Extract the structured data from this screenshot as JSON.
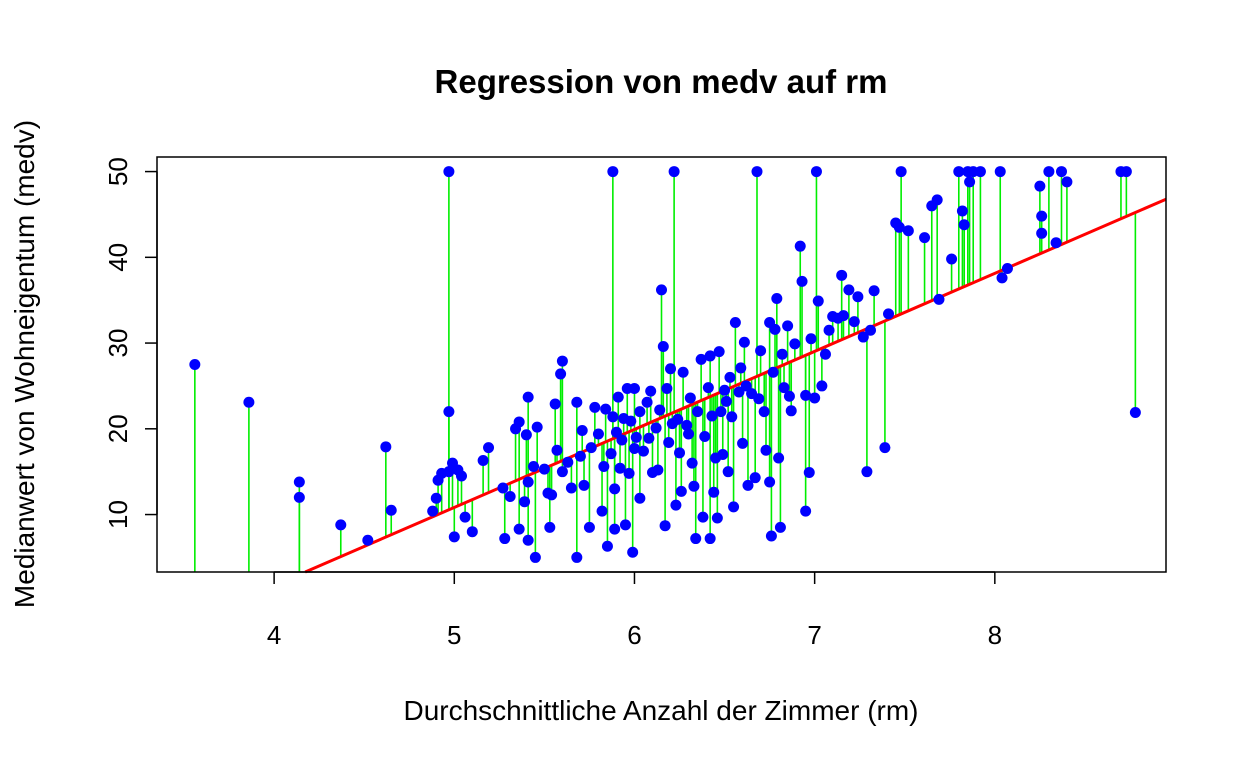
{
  "chart_data": {
    "type": "scatter",
    "title": "Regression von medv auf rm",
    "xlabel": "Durchschnittliche Anzahl der Zimmer (rm)",
    "ylabel": "Medianwert von Wohneigentum (medv)",
    "xlim": [
      3.35,
      8.95
    ],
    "ylim": [
      3.3,
      51.7
    ],
    "x_ticks": [
      4,
      5,
      6,
      7,
      8
    ],
    "y_ticks": [
      10,
      20,
      30,
      40,
      50
    ],
    "grid": false,
    "legend": "none",
    "regression_line": {
      "intercept": -34.67,
      "slope": 9.1,
      "color": "#ff0000"
    },
    "point_color": "#0000ff",
    "residual_color": "#00ee00",
    "points": [
      [
        3.56,
        27.5
      ],
      [
        3.86,
        23.1
      ],
      [
        4.14,
        13.8
      ],
      [
        4.14,
        12.0
      ],
      [
        4.37,
        8.8
      ],
      [
        4.52,
        7.0
      ],
      [
        4.62,
        17.9
      ],
      [
        4.65,
        10.5
      ],
      [
        4.88,
        10.4
      ],
      [
        4.9,
        11.9
      ],
      [
        4.91,
        14.0
      ],
      [
        4.93,
        14.8
      ],
      [
        4.97,
        50.0
      ],
      [
        4.97,
        22.0
      ],
      [
        4.97,
        15.0
      ],
      [
        4.99,
        16.0
      ],
      [
        5.0,
        7.4
      ],
      [
        5.02,
        15.2
      ],
      [
        5.04,
        14.5
      ],
      [
        5.06,
        9.7
      ],
      [
        5.1,
        8.0
      ],
      [
        5.16,
        16.3
      ],
      [
        5.19,
        17.8
      ],
      [
        5.27,
        13.1
      ],
      [
        5.28,
        7.2
      ],
      [
        5.31,
        12.1
      ],
      [
        5.34,
        20.0
      ],
      [
        5.36,
        8.3
      ],
      [
        5.36,
        20.8
      ],
      [
        5.39,
        11.5
      ],
      [
        5.4,
        19.3
      ],
      [
        5.41,
        13.8
      ],
      [
        5.41,
        23.7
      ],
      [
        5.41,
        7.0
      ],
      [
        5.44,
        15.6
      ],
      [
        5.45,
        5.0
      ],
      [
        5.46,
        20.2
      ],
      [
        5.5,
        15.3
      ],
      [
        5.52,
        12.5
      ],
      [
        5.53,
        8.5
      ],
      [
        5.54,
        12.3
      ],
      [
        5.56,
        22.9
      ],
      [
        5.57,
        17.5
      ],
      [
        5.59,
        26.4
      ],
      [
        5.6,
        27.9
      ],
      [
        5.6,
        15.0
      ],
      [
        5.63,
        16.1
      ],
      [
        5.65,
        13.1
      ],
      [
        5.68,
        23.1
      ],
      [
        5.68,
        5.0
      ],
      [
        5.7,
        16.8
      ],
      [
        5.71,
        19.8
      ],
      [
        5.72,
        13.4
      ],
      [
        5.75,
        8.5
      ],
      [
        5.76,
        17.8
      ],
      [
        5.78,
        22.5
      ],
      [
        5.8,
        19.4
      ],
      [
        5.82,
        10.4
      ],
      [
        5.83,
        15.6
      ],
      [
        5.84,
        22.3
      ],
      [
        5.85,
        6.3
      ],
      [
        5.87,
        17.1
      ],
      [
        5.88,
        50.0
      ],
      [
        5.88,
        21.4
      ],
      [
        5.89,
        13.0
      ],
      [
        5.89,
        8.3
      ],
      [
        5.9,
        19.6
      ],
      [
        5.91,
        23.7
      ],
      [
        5.92,
        15.4
      ],
      [
        5.93,
        18.7
      ],
      [
        5.94,
        21.2
      ],
      [
        5.95,
        8.8
      ],
      [
        5.96,
        24.7
      ],
      [
        5.97,
        14.8
      ],
      [
        5.98,
        20.9
      ],
      [
        5.99,
        5.6
      ],
      [
        6.0,
        17.7
      ],
      [
        6.0,
        24.7
      ],
      [
        6.01,
        19.0
      ],
      [
        6.03,
        11.9
      ],
      [
        6.03,
        22.0
      ],
      [
        6.05,
        17.4
      ],
      [
        6.07,
        23.1
      ],
      [
        6.08,
        18.9
      ],
      [
        6.09,
        24.4
      ],
      [
        6.1,
        14.9
      ],
      [
        6.12,
        20.1
      ],
      [
        6.13,
        15.2
      ],
      [
        6.14,
        22.2
      ],
      [
        6.15,
        36.2
      ],
      [
        6.16,
        29.6
      ],
      [
        6.17,
        8.7
      ],
      [
        6.18,
        24.7
      ],
      [
        6.19,
        18.4
      ],
      [
        6.2,
        27.0
      ],
      [
        6.21,
        20.6
      ],
      [
        6.22,
        50.0
      ],
      [
        6.23,
        11.1
      ],
      [
        6.24,
        21.1
      ],
      [
        6.25,
        17.2
      ],
      [
        6.26,
        12.7
      ],
      [
        6.27,
        26.6
      ],
      [
        6.29,
        20.4
      ],
      [
        6.3,
        19.4
      ],
      [
        6.31,
        23.6
      ],
      [
        6.32,
        16.0
      ],
      [
        6.33,
        13.3
      ],
      [
        6.34,
        7.2
      ],
      [
        6.35,
        22.0
      ],
      [
        6.37,
        28.1
      ],
      [
        6.38,
        9.7
      ],
      [
        6.39,
        19.1
      ],
      [
        6.41,
        24.8
      ],
      [
        6.42,
        28.5
      ],
      [
        6.42,
        7.2
      ],
      [
        6.43,
        21.5
      ],
      [
        6.44,
        12.6
      ],
      [
        6.45,
        16.6
      ],
      [
        6.46,
        9.6
      ],
      [
        6.47,
        29.0
      ],
      [
        6.48,
        22.0
      ],
      [
        6.49,
        17.0
      ],
      [
        6.5,
        24.5
      ],
      [
        6.51,
        23.2
      ],
      [
        6.52,
        15.0
      ],
      [
        6.53,
        26.0
      ],
      [
        6.54,
        21.4
      ],
      [
        6.55,
        10.9
      ],
      [
        6.56,
        32.4
      ],
      [
        6.58,
        24.3
      ],
      [
        6.59,
        27.1
      ],
      [
        6.6,
        18.3
      ],
      [
        6.61,
        30.1
      ],
      [
        6.62,
        25.0
      ],
      [
        6.63,
        13.4
      ],
      [
        6.65,
        24.1
      ],
      [
        6.67,
        14.3
      ],
      [
        6.68,
        50.0
      ],
      [
        6.69,
        23.5
      ],
      [
        6.7,
        29.1
      ],
      [
        6.72,
        22.0
      ],
      [
        6.73,
        17.5
      ],
      [
        6.75,
        32.4
      ],
      [
        6.75,
        13.8
      ],
      [
        6.76,
        7.5
      ],
      [
        6.77,
        26.6
      ],
      [
        6.78,
        31.6
      ],
      [
        6.79,
        35.2
      ],
      [
        6.8,
        16.6
      ],
      [
        6.81,
        8.5
      ],
      [
        6.82,
        28.7
      ],
      [
        6.83,
        24.8
      ],
      [
        6.85,
        32.0
      ],
      [
        6.86,
        23.8
      ],
      [
        6.87,
        22.1
      ],
      [
        6.89,
        29.9
      ],
      [
        6.92,
        41.3
      ],
      [
        6.93,
        37.2
      ],
      [
        6.95,
        23.9
      ],
      [
        6.95,
        10.4
      ],
      [
        6.97,
        14.9
      ],
      [
        6.98,
        30.5
      ],
      [
        7.0,
        23.6
      ],
      [
        7.01,
        50.0
      ],
      [
        7.02,
        34.9
      ],
      [
        7.04,
        25.0
      ],
      [
        7.06,
        28.7
      ],
      [
        7.08,
        31.5
      ],
      [
        7.1,
        33.1
      ],
      [
        7.13,
        32.9
      ],
      [
        7.15,
        37.9
      ],
      [
        7.16,
        33.2
      ],
      [
        7.19,
        36.2
      ],
      [
        7.22,
        32.5
      ],
      [
        7.24,
        35.4
      ],
      [
        7.27,
        30.7
      ],
      [
        7.29,
        15.0
      ],
      [
        7.31,
        31.5
      ],
      [
        7.33,
        36.1
      ],
      [
        7.39,
        17.8
      ],
      [
        7.41,
        33.4
      ],
      [
        7.45,
        44.0
      ],
      [
        7.47,
        43.5
      ],
      [
        7.48,
        50.0
      ],
      [
        7.52,
        43.1
      ],
      [
        7.61,
        42.3
      ],
      [
        7.65,
        46.0
      ],
      [
        7.68,
        46.7
      ],
      [
        7.69,
        35.1
      ],
      [
        7.76,
        39.8
      ],
      [
        7.8,
        50.0
      ],
      [
        7.82,
        45.4
      ],
      [
        7.83,
        43.8
      ],
      [
        7.85,
        50.0
      ],
      [
        7.86,
        48.8
      ],
      [
        7.88,
        50.0
      ],
      [
        7.92,
        50.0
      ],
      [
        8.03,
        50.0
      ],
      [
        8.04,
        37.6
      ],
      [
        8.07,
        38.7
      ],
      [
        8.25,
        48.3
      ],
      [
        8.26,
        44.8
      ],
      [
        8.26,
        42.8
      ],
      [
        8.3,
        50.0
      ],
      [
        8.34,
        41.7
      ],
      [
        8.37,
        50.0
      ],
      [
        8.4,
        48.8
      ],
      [
        8.7,
        50.0
      ],
      [
        8.73,
        50.0
      ],
      [
        8.78,
        21.9
      ]
    ]
  }
}
